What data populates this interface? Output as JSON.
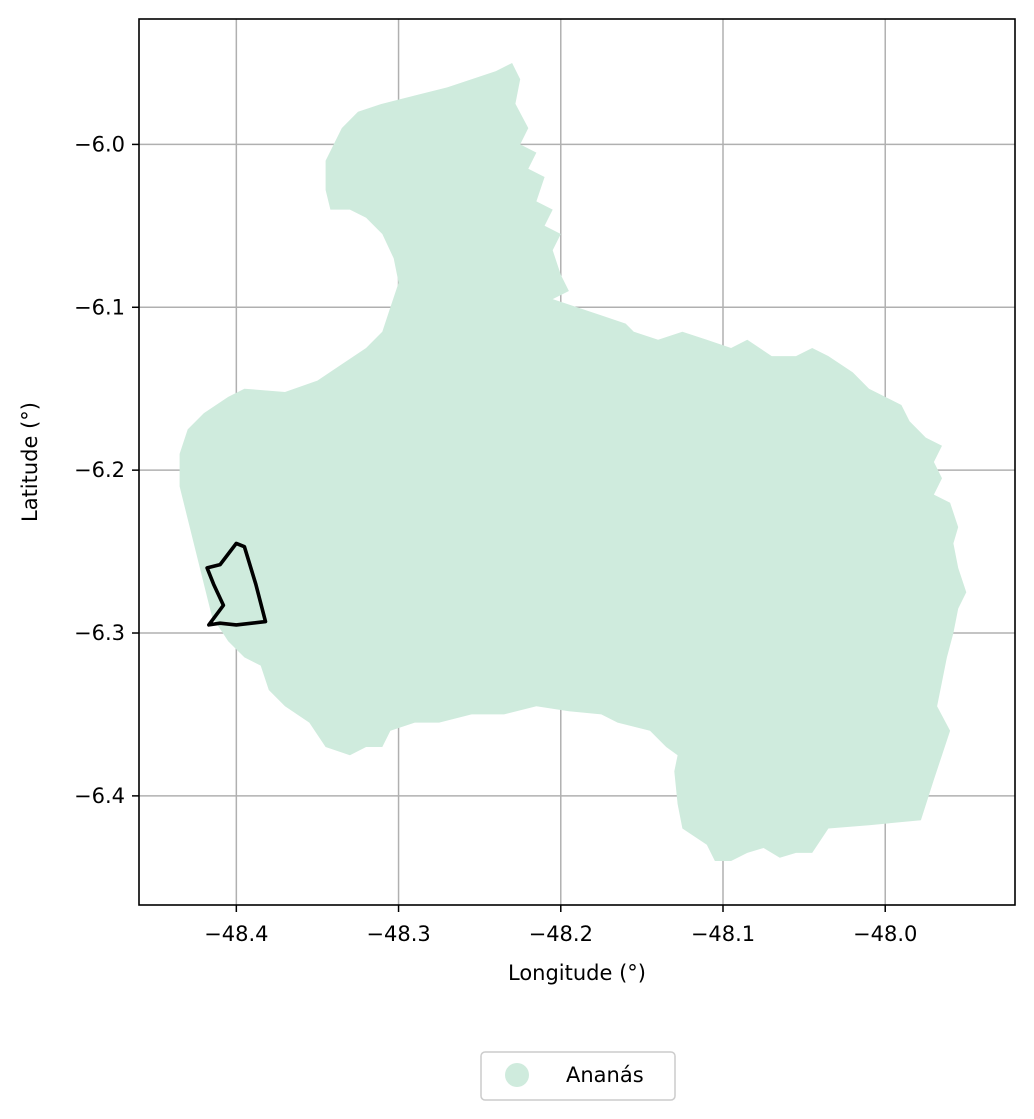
{
  "map": {
    "xlabel": "Longitude (°)",
    "ylabel": "Latitude (°)",
    "xlim": [
      -48.46,
      -47.92
    ],
    "ylim": [
      -6.467,
      -5.923
    ],
    "xticks": [
      -48.4,
      -48.3,
      -48.2,
      -48.1,
      -48.0
    ],
    "xtick_labels": [
      "−48.4",
      "−48.3",
      "−48.2",
      "−48.1",
      "−48.0"
    ],
    "yticks": [
      -6.0,
      -6.1,
      -6.2,
      -6.3,
      -6.4
    ],
    "ytick_labels": [
      "−6.0",
      "−6.1",
      "−6.2",
      "−6.3",
      "−6.4"
    ],
    "grid": true,
    "legend": {
      "placement": "below-center",
      "entries": [
        {
          "label": "Ananás",
          "color": "#cfebdd",
          "marker": "circle"
        }
      ]
    },
    "region_fill_color": "#cfebdd",
    "outline_color": "#000000",
    "grid_color": "#b0b0b0",
    "region_lonlat": [
      [
        -48.23,
        -5.95
      ],
      [
        -48.225,
        -5.96
      ],
      [
        -48.228,
        -5.975
      ],
      [
        -48.22,
        -5.99
      ],
      [
        -48.225,
        -6.0
      ],
      [
        -48.215,
        -6.005
      ],
      [
        -48.22,
        -6.015
      ],
      [
        -48.21,
        -6.02
      ],
      [
        -48.215,
        -6.035
      ],
      [
        -48.205,
        -6.04
      ],
      [
        -48.21,
        -6.05
      ],
      [
        -48.2,
        -6.055
      ],
      [
        -48.205,
        -6.065
      ],
      [
        -48.2,
        -6.08
      ],
      [
        -48.195,
        -6.09
      ],
      [
        -48.205,
        -6.095
      ],
      [
        -48.19,
        -6.1
      ],
      [
        -48.175,
        -6.105
      ],
      [
        -48.16,
        -6.11
      ],
      [
        -48.155,
        -6.115
      ],
      [
        -48.14,
        -6.12
      ],
      [
        -48.125,
        -6.115
      ],
      [
        -48.11,
        -6.12
      ],
      [
        -48.095,
        -6.125
      ],
      [
        -48.085,
        -6.12
      ],
      [
        -48.07,
        -6.13
      ],
      [
        -48.055,
        -6.13
      ],
      [
        -48.045,
        -6.125
      ],
      [
        -48.035,
        -6.13
      ],
      [
        -48.02,
        -6.14
      ],
      [
        -48.01,
        -6.15
      ],
      [
        -48.0,
        -6.155
      ],
      [
        -47.99,
        -6.16
      ],
      [
        -47.985,
        -6.17
      ],
      [
        -47.975,
        -6.18
      ],
      [
        -47.965,
        -6.185
      ],
      [
        -47.97,
        -6.195
      ],
      [
        -47.965,
        -6.205
      ],
      [
        -47.97,
        -6.215
      ],
      [
        -47.96,
        -6.22
      ],
      [
        -47.955,
        -6.235
      ],
      [
        -47.958,
        -6.245
      ],
      [
        -47.955,
        -6.26
      ],
      [
        -47.95,
        -6.275
      ],
      [
        -47.955,
        -6.285
      ],
      [
        -47.958,
        -6.3
      ],
      [
        -47.962,
        -6.315
      ],
      [
        -47.965,
        -6.33
      ],
      [
        -47.968,
        -6.345
      ],
      [
        -47.96,
        -6.36
      ],
      [
        -47.965,
        -6.375
      ],
      [
        -47.97,
        -6.39
      ],
      [
        -47.978,
        -6.415
      ],
      [
        -48.01,
        -6.418
      ],
      [
        -48.035,
        -6.42
      ],
      [
        -48.045,
        -6.435
      ],
      [
        -48.055,
        -6.435
      ],
      [
        -48.065,
        -6.438
      ],
      [
        -48.075,
        -6.432
      ],
      [
        -48.085,
        -6.435
      ],
      [
        -48.095,
        -6.44
      ],
      [
        -48.105,
        -6.44
      ],
      [
        -48.11,
        -6.43
      ],
      [
        -48.125,
        -6.42
      ],
      [
        -48.128,
        -6.405
      ],
      [
        -48.13,
        -6.385
      ],
      [
        -48.128,
        -6.375
      ],
      [
        -48.135,
        -6.37
      ],
      [
        -48.145,
        -6.36
      ],
      [
        -48.165,
        -6.355
      ],
      [
        -48.175,
        -6.35
      ],
      [
        -48.195,
        -6.348
      ],
      [
        -48.215,
        -6.345
      ],
      [
        -48.235,
        -6.35
      ],
      [
        -48.255,
        -6.35
      ],
      [
        -48.275,
        -6.355
      ],
      [
        -48.29,
        -6.355
      ],
      [
        -48.305,
        -6.36
      ],
      [
        -48.31,
        -6.37
      ],
      [
        -48.32,
        -6.37
      ],
      [
        -48.33,
        -6.375
      ],
      [
        -48.345,
        -6.37
      ],
      [
        -48.355,
        -6.355
      ],
      [
        -48.37,
        -6.345
      ],
      [
        -48.38,
        -6.335
      ],
      [
        -48.385,
        -6.32
      ],
      [
        -48.395,
        -6.315
      ],
      [
        -48.405,
        -6.305
      ],
      [
        -48.415,
        -6.29
      ],
      [
        -48.42,
        -6.27
      ],
      [
        -48.425,
        -6.25
      ],
      [
        -48.43,
        -6.23
      ],
      [
        -48.435,
        -6.21
      ],
      [
        -48.435,
        -6.19
      ],
      [
        -48.43,
        -6.175
      ],
      [
        -48.42,
        -6.165
      ],
      [
        -48.405,
        -6.155
      ],
      [
        -48.395,
        -6.15
      ],
      [
        -48.37,
        -6.152
      ],
      [
        -48.35,
        -6.145
      ],
      [
        -48.335,
        -6.135
      ],
      [
        -48.32,
        -6.125
      ],
      [
        -48.31,
        -6.115
      ],
      [
        -48.305,
        -6.1
      ],
      [
        -48.3,
        -6.085
      ],
      [
        -48.303,
        -6.07
      ],
      [
        -48.31,
        -6.055
      ],
      [
        -48.32,
        -6.045
      ],
      [
        -48.33,
        -6.04
      ],
      [
        -48.342,
        -6.04
      ],
      [
        -48.345,
        -6.028
      ],
      [
        -48.345,
        -6.01
      ],
      [
        -48.335,
        -5.99
      ],
      [
        -48.325,
        -5.98
      ],
      [
        -48.31,
        -5.975
      ],
      [
        -48.29,
        -5.97
      ],
      [
        -48.27,
        -5.965
      ],
      [
        -48.255,
        -5.96
      ],
      [
        -48.24,
        -5.955
      ],
      [
        -48.23,
        -5.95
      ]
    ],
    "outline_lonlat": [
      [
        -48.4,
        -6.245
      ],
      [
        -48.395,
        -6.247
      ],
      [
        -48.388,
        -6.27
      ],
      [
        -48.382,
        -6.293
      ],
      [
        -48.4,
        -6.295
      ],
      [
        -48.41,
        -6.294
      ],
      [
        -48.417,
        -6.295
      ],
      [
        -48.408,
        -6.283
      ],
      [
        -48.414,
        -6.27
      ],
      [
        -48.418,
        -6.26
      ],
      [
        -48.41,
        -6.258
      ],
      [
        -48.4,
        -6.245
      ]
    ]
  }
}
